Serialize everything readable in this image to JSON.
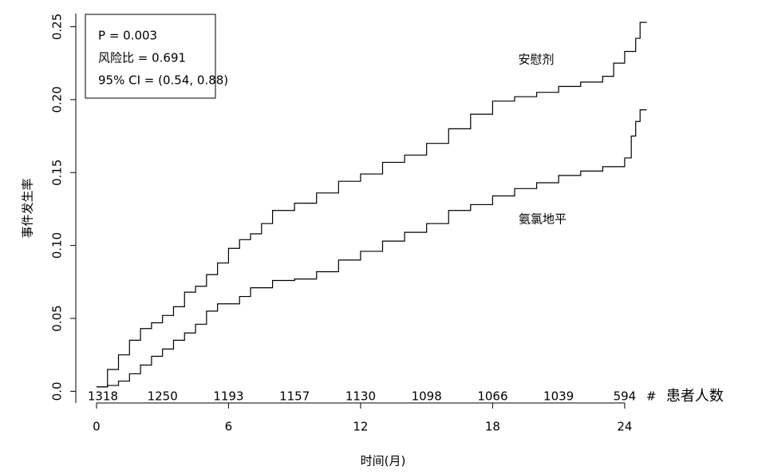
{
  "chart_data": {
    "type": "line",
    "step": true,
    "ylabel": "事件发生率",
    "xlabel": "时间(月)",
    "xlim": [
      -0.94,
      25.2
    ],
    "ylim": [
      -0.008,
      0.259
    ],
    "xticks": [
      0,
      6,
      12,
      18,
      24
    ],
    "yticks": [
      {
        "value": 0,
        "label": "0.0"
      },
      0.05,
      {
        "value": 0.1,
        "label": "0.10"
      },
      0.15,
      {
        "value": 0.2,
        "label": "0.20"
      },
      0.25
    ],
    "annotations": [
      "P = 0.003",
      "风险比 = 0.691",
      "95% CI = (0.54, 0.88)"
    ],
    "series": [
      {
        "name": "安慰剂",
        "color": "#000000",
        "x": [
          0,
          0.5,
          1,
          1.5,
          2,
          2.5,
          3,
          3.5,
          4,
          4.5,
          5,
          5.5,
          6,
          6.5,
          7,
          7.5,
          8,
          9,
          10,
          11,
          12,
          13,
          14,
          15,
          16,
          17,
          18,
          19,
          20,
          21,
          22,
          23,
          23.5,
          24,
          24.5,
          24.7,
          25
        ],
        "values": [
          0.003,
          0.015,
          0.025,
          0.035,
          0.043,
          0.047,
          0.052,
          0.058,
          0.068,
          0.072,
          0.08,
          0.088,
          0.098,
          0.104,
          0.108,
          0.115,
          0.124,
          0.129,
          0.136,
          0.144,
          0.149,
          0.157,
          0.162,
          0.17,
          0.18,
          0.19,
          0.199,
          0.202,
          0.205,
          0.209,
          0.212,
          0.216,
          0.225,
          0.233,
          0.242,
          0.253,
          0.253
        ]
      },
      {
        "name": "氨氯地平",
        "color": "#000000",
        "x": [
          0,
          0.5,
          1,
          1.5,
          2,
          2.5,
          3,
          3.5,
          4,
          4.5,
          5,
          5.5,
          6,
          6.5,
          7,
          8,
          9,
          10,
          11,
          12,
          13,
          14,
          15,
          16,
          17,
          18,
          19,
          20,
          21,
          22,
          23,
          24,
          24.3,
          24.5,
          24.7,
          25
        ],
        "values": [
          0.003,
          0.004,
          0.007,
          0.012,
          0.018,
          0.024,
          0.029,
          0.035,
          0.04,
          0.046,
          0.055,
          0.06,
          0.06,
          0.065,
          0.071,
          0.076,
          0.077,
          0.082,
          0.09,
          0.096,
          0.103,
          0.109,
          0.115,
          0.124,
          0.128,
          0.134,
          0.139,
          0.143,
          0.148,
          0.151,
          0.154,
          0.16,
          0.175,
          0.185,
          0.193,
          0.193
        ]
      }
    ],
    "at_risk": {
      "label": "患者人数",
      "marker": "#",
      "x": [
        0,
        3,
        6,
        9,
        12,
        15,
        18,
        21,
        24
      ],
      "values": [
        1318,
        1250,
        1193,
        1157,
        1130,
        1098,
        1066,
        1039,
        594
      ]
    }
  }
}
